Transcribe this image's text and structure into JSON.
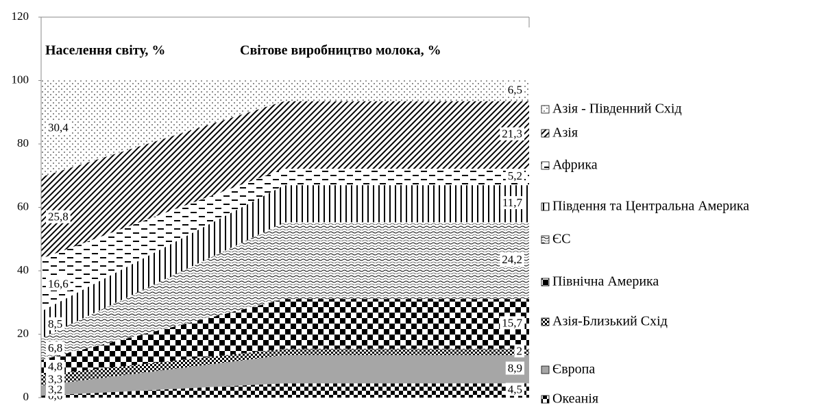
{
  "chart_data": {
    "type": "stacked-area",
    "annotations": [
      "Населення світу, %",
      "Світове виробництво молока, %"
    ],
    "ylim": [
      0,
      120
    ],
    "yticks": [
      0,
      20,
      40,
      60,
      80,
      100,
      120
    ],
    "series": [
      {
        "name": "Океанія",
        "color": "#000000",
        "values": [
          0.6,
          4.5,
          4.5
        ],
        "value_labels": [
          "0,6",
          null,
          "4,5"
        ]
      },
      {
        "name": "Європа",
        "color": "#a6a6a6",
        "values": [
          3.2,
          8.9,
          8.9
        ],
        "value_labels": [
          "3,2",
          null,
          "8,9"
        ]
      },
      {
        "name": "Азія-Близький Схід",
        "color": "#000000",
        "values": [
          3.3,
          2,
          2
        ],
        "value_labels": [
          "3,3",
          null,
          "2"
        ]
      },
      {
        "name": "Північна Америка",
        "color": "#000000",
        "values": [
          4.8,
          15.7,
          15.7
        ],
        "value_labels": [
          "4,8",
          null,
          "15,7"
        ]
      },
      {
        "name": "ЄС",
        "color": "#000000",
        "values": [
          6.8,
          24.2,
          24.2
        ],
        "value_labels": [
          "6,8",
          null,
          "24,2"
        ]
      },
      {
        "name": "Південня та Центральна Америка",
        "color": "#000000",
        "values": [
          8.5,
          11.7,
          11.7
        ],
        "value_labels": [
          "8,5",
          null,
          "11,7"
        ]
      },
      {
        "name": "Африка",
        "color": "#000000",
        "values": [
          16.6,
          5.2,
          5.2
        ],
        "value_labels": [
          "16,6",
          null,
          "5,2"
        ]
      },
      {
        "name": "Азія",
        "color": "#000000",
        "values": [
          25.8,
          21.3,
          21.3
        ],
        "value_labels": [
          "25,8",
          null,
          "21,3"
        ]
      },
      {
        "name": "Азія - Південний Схід",
        "color": "#000000",
        "values": [
          30.4,
          6.5,
          6.5
        ],
        "value_labels": [
          "30,4",
          null,
          "6,5"
        ]
      }
    ]
  }
}
